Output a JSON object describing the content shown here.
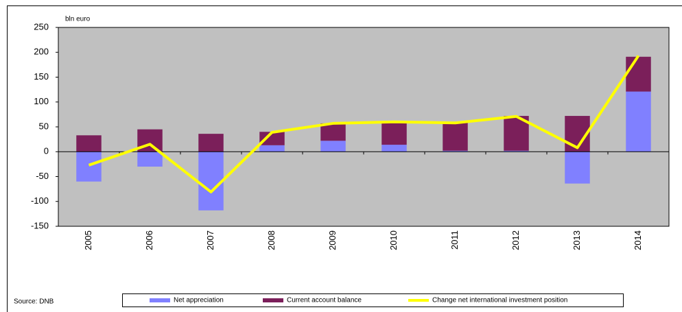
{
  "chart_data": {
    "type": "bar",
    "y_axis_label": "bln euro",
    "source": "Source: DNB",
    "categories": [
      "2005",
      "2006",
      "2007",
      "2008",
      "2009",
      "2010",
      "2011",
      "2012",
      "2013",
      "2014"
    ],
    "series": [
      {
        "name": "Net appreciation",
        "color": "#8080ff",
        "values": [
          -60,
          -30,
          -118,
          13,
          22,
          14,
          2,
          2,
          -64,
          121
        ]
      },
      {
        "name": "Current account balance",
        "color": "#7b1f5a",
        "values": [
          33,
          45,
          36,
          27,
          35,
          46,
          56,
          70,
          72,
          70
        ]
      },
      {
        "name": "Change net international investment position",
        "type": "line",
        "color": "#ffff00",
        "values": [
          -27,
          15,
          -81,
          39,
          57,
          60,
          58,
          71,
          8,
          193
        ]
      }
    ],
    "ylim": [
      -150,
      250
    ],
    "yticks": [
      -150,
      -100,
      -50,
      0,
      50,
      100,
      150,
      200,
      250
    ],
    "stacked": true,
    "plot_background": "#c0c0c0"
  }
}
